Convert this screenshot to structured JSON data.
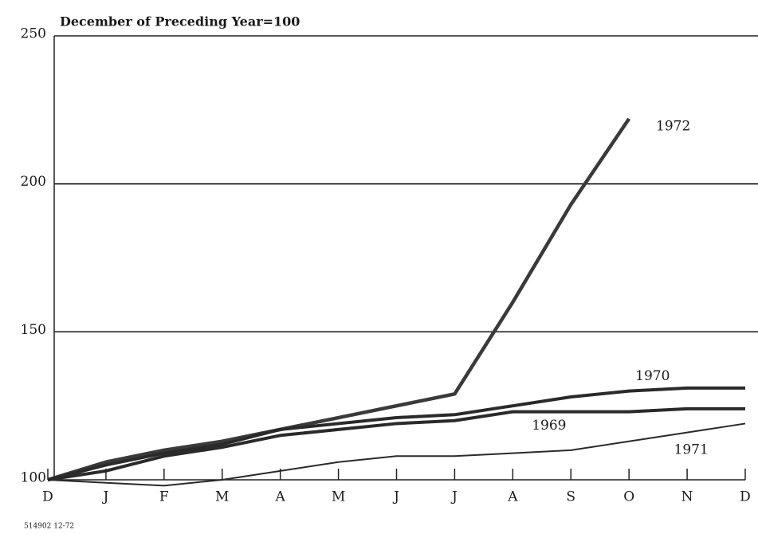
{
  "chart_data": {
    "type": "line",
    "subtitle": "December of Preceding Year=100",
    "footnote": "514902 12-72",
    "categories": [
      "D",
      "J",
      "F",
      "M",
      "A",
      "M",
      "J",
      "J",
      "A",
      "S",
      "O",
      "N",
      "D"
    ],
    "series": [
      {
        "name": "1972",
        "color": "#3a3a3a",
        "values": [
          100,
          106,
          110,
          113,
          117,
          121,
          125,
          129,
          160,
          193,
          222,
          null,
          null
        ]
      },
      {
        "name": "1970",
        "color": "#2a2a2a",
        "values": [
          100,
          105,
          109,
          112,
          117,
          119,
          121,
          122,
          125,
          128,
          130,
          131,
          131
        ]
      },
      {
        "name": "1969",
        "color": "#2a2a2a",
        "values": [
          100,
          103,
          108,
          111,
          115,
          117,
          119,
          120,
          123,
          123,
          123,
          124,
          124
        ]
      },
      {
        "name": "1971",
        "color": "#2a2a2a",
        "values": [
          100,
          99,
          98,
          100,
          103,
          106,
          108,
          108,
          109,
          110,
          113,
          116,
          119
        ]
      }
    ],
    "ylim": [
      100,
      250
    ],
    "yticks": [
      100,
      150,
      200,
      250
    ],
    "grid": true
  }
}
